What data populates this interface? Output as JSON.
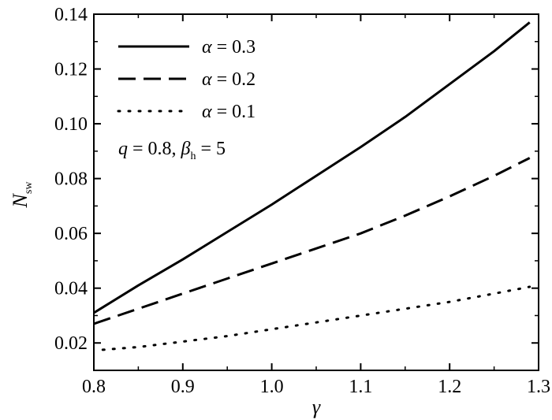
{
  "chart_data": {
    "type": "line",
    "xlabel": "γ",
    "ylabel": "N",
    "ylabel_sub": "sw",
    "xlim": [
      0.8,
      1.3
    ],
    "ylim": [
      0.01,
      0.14
    ],
    "xticks": [
      "0.8",
      "0.9",
      "1.0",
      "1.1",
      "1.2",
      "1.3"
    ],
    "yticks": [
      "0.02",
      "0.04",
      "0.06",
      "0.08",
      "0.10",
      "0.12",
      "0.14"
    ],
    "grid": false,
    "legend_position": "top-left",
    "series": [
      {
        "name": "α = 0.3",
        "name_symbol": "α",
        "name_rest": " = 0.3",
        "style": "solid",
        "x": [
          0.8,
          0.85,
          0.9,
          0.95,
          1.0,
          1.05,
          1.1,
          1.15,
          1.2,
          1.25,
          1.29
        ],
        "y": [
          0.031,
          0.041,
          0.0505,
          0.0605,
          0.0705,
          0.081,
          0.0915,
          0.1025,
          0.1145,
          0.1265,
          0.137
        ]
      },
      {
        "name": "α = 0.2",
        "name_symbol": "α",
        "name_rest": " = 0.2",
        "style": "dashed",
        "x": [
          0.8,
          0.85,
          0.9,
          0.95,
          1.0,
          1.05,
          1.1,
          1.15,
          1.2,
          1.25,
          1.29
        ],
        "y": [
          0.027,
          0.0325,
          0.038,
          0.0435,
          0.049,
          0.0545,
          0.06,
          0.0665,
          0.0735,
          0.081,
          0.0875
        ]
      },
      {
        "name": "α = 0.1",
        "name_symbol": "α",
        "name_rest": " = 0.1",
        "style": "dotted",
        "x": [
          0.81,
          0.85,
          0.9,
          0.95,
          1.0,
          1.05,
          1.1,
          1.15,
          1.2,
          1.25,
          1.29
        ],
        "y": [
          0.0175,
          0.0185,
          0.0205,
          0.0225,
          0.025,
          0.0275,
          0.03,
          0.0325,
          0.035,
          0.038,
          0.0405
        ]
      }
    ],
    "annotation": {
      "q_symbol": "q",
      "q_rest": " = 0.8, ",
      "beta_symbol": "β",
      "beta_sub": "h",
      "beta_rest": " = 5"
    }
  }
}
